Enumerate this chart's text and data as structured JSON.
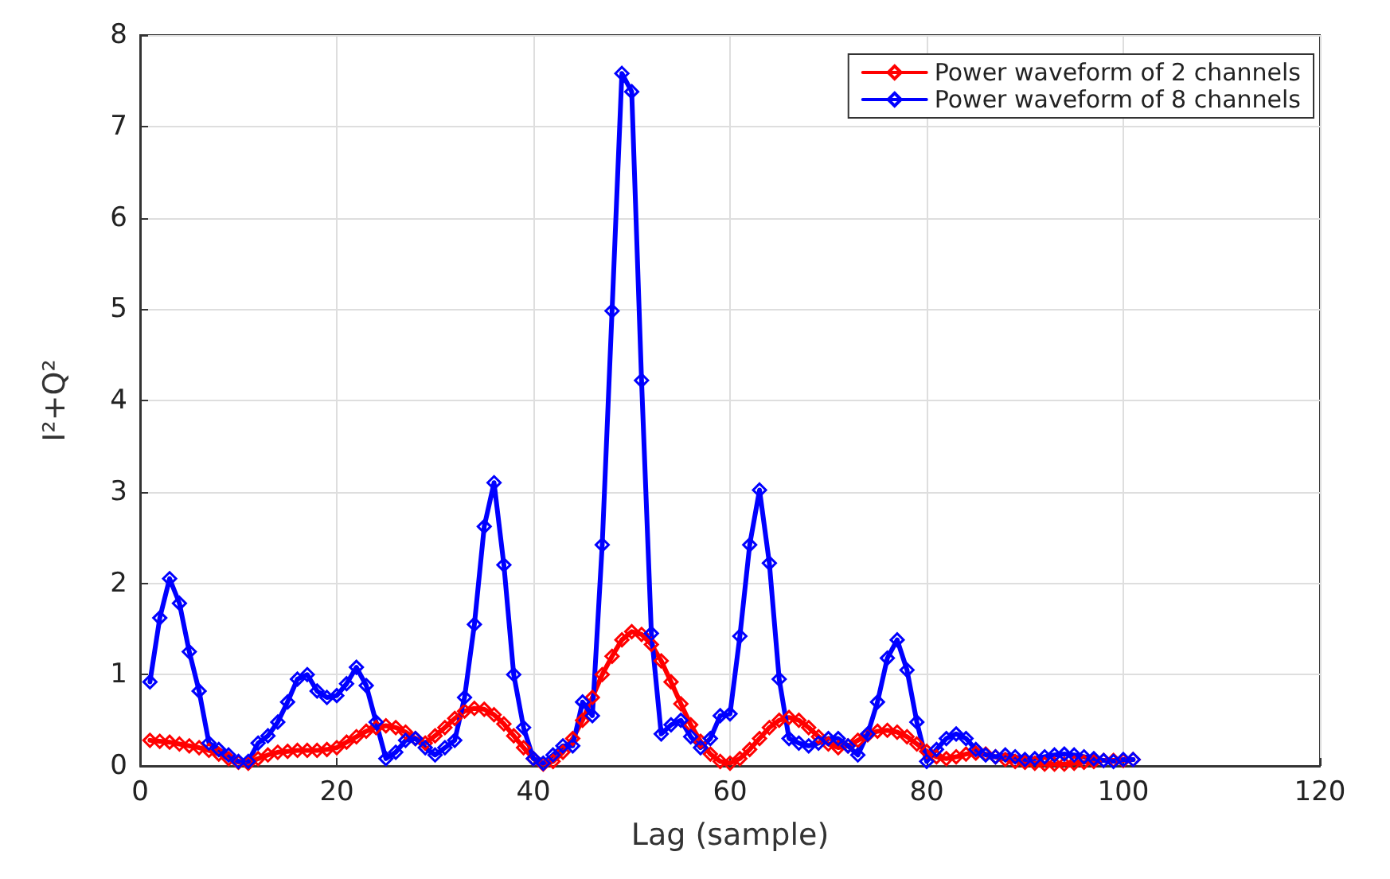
{
  "chart_data": {
    "type": "line",
    "xlabel": "Lag (sample)",
    "ylabel": "I²+Q²",
    "x": [
      1,
      2,
      3,
      4,
      5,
      6,
      7,
      8,
      9,
      10,
      11,
      12,
      13,
      14,
      15,
      16,
      17,
      18,
      19,
      20,
      21,
      22,
      23,
      24,
      25,
      26,
      27,
      28,
      29,
      30,
      31,
      32,
      33,
      34,
      35,
      36,
      37,
      38,
      39,
      40,
      41,
      42,
      43,
      44,
      45,
      46,
      47,
      48,
      49,
      50,
      51,
      52,
      53,
      54,
      55,
      56,
      57,
      58,
      59,
      60,
      61,
      62,
      63,
      64,
      65,
      66,
      67,
      68,
      69,
      70,
      71,
      72,
      73,
      74,
      75,
      76,
      77,
      78,
      79,
      80,
      81,
      82,
      83,
      84,
      85,
      86,
      87,
      88,
      89,
      90,
      91,
      92,
      93,
      94,
      95,
      96,
      97,
      98,
      99,
      100,
      101
    ],
    "series": [
      {
        "name": "Power waveform of 2 channels",
        "color": "#ff0000",
        "values": [
          0.28,
          0.27,
          0.26,
          0.24,
          0.22,
          0.2,
          0.17,
          0.13,
          0.08,
          0.04,
          0.03,
          0.08,
          0.12,
          0.15,
          0.16,
          0.17,
          0.17,
          0.17,
          0.18,
          0.2,
          0.26,
          0.32,
          0.38,
          0.42,
          0.44,
          0.42,
          0.37,
          0.3,
          0.25,
          0.33,
          0.42,
          0.52,
          0.6,
          0.63,
          0.62,
          0.56,
          0.46,
          0.33,
          0.2,
          0.08,
          0.02,
          0.05,
          0.15,
          0.3,
          0.5,
          0.75,
          1.0,
          1.2,
          1.38,
          1.47,
          1.44,
          1.33,
          1.15,
          0.92,
          0.68,
          0.45,
          0.27,
          0.13,
          0.05,
          0.03,
          0.08,
          0.18,
          0.3,
          0.42,
          0.5,
          0.53,
          0.5,
          0.42,
          0.32,
          0.24,
          0.2,
          0.22,
          0.28,
          0.34,
          0.38,
          0.39,
          0.37,
          0.32,
          0.24,
          0.16,
          0.1,
          0.08,
          0.1,
          0.13,
          0.14,
          0.13,
          0.1,
          0.07,
          0.05,
          0.04,
          0.03,
          0.02,
          0.02,
          0.02,
          0.03,
          0.04,
          0.05,
          0.06,
          0.06,
          0.06,
          0.07
        ]
      },
      {
        "name": "Power waveform of 8 channels",
        "color": "#0000ff",
        "values": [
          0.92,
          1.62,
          2.05,
          1.78,
          1.25,
          0.82,
          0.25,
          0.18,
          0.12,
          0.05,
          0.05,
          0.25,
          0.33,
          0.48,
          0.7,
          0.95,
          1.0,
          0.82,
          0.75,
          0.77,
          0.9,
          1.08,
          0.88,
          0.48,
          0.08,
          0.15,
          0.28,
          0.3,
          0.2,
          0.12,
          0.2,
          0.28,
          0.75,
          1.55,
          2.62,
          3.1,
          2.2,
          1.0,
          0.42,
          0.08,
          0.03,
          0.12,
          0.22,
          0.22,
          0.7,
          0.55,
          2.42,
          4.98,
          7.58,
          7.38,
          4.22,
          1.45,
          0.35,
          0.45,
          0.5,
          0.32,
          0.2,
          0.3,
          0.55,
          0.57,
          1.42,
          2.42,
          3.02,
          2.22,
          0.95,
          0.3,
          0.25,
          0.22,
          0.25,
          0.3,
          0.3,
          0.22,
          0.12,
          0.35,
          0.7,
          1.18,
          1.38,
          1.05,
          0.48,
          0.05,
          0.18,
          0.3,
          0.35,
          0.3,
          0.18,
          0.12,
          0.1,
          0.12,
          0.1,
          0.07,
          0.08,
          0.1,
          0.12,
          0.13,
          0.12,
          0.1,
          0.08,
          0.06,
          0.05,
          0.07,
          0.07
        ]
      }
    ],
    "xlim": [
      0,
      120
    ],
    "xticks": [
      0,
      20,
      40,
      60,
      80,
      100,
      120
    ],
    "ylim": [
      0,
      8
    ],
    "yticks": [
      0,
      1,
      2,
      3,
      4,
      5,
      6,
      7,
      8
    ],
    "grid": true,
    "legend": "top right",
    "marker": "diamond",
    "line_style": "solid"
  }
}
